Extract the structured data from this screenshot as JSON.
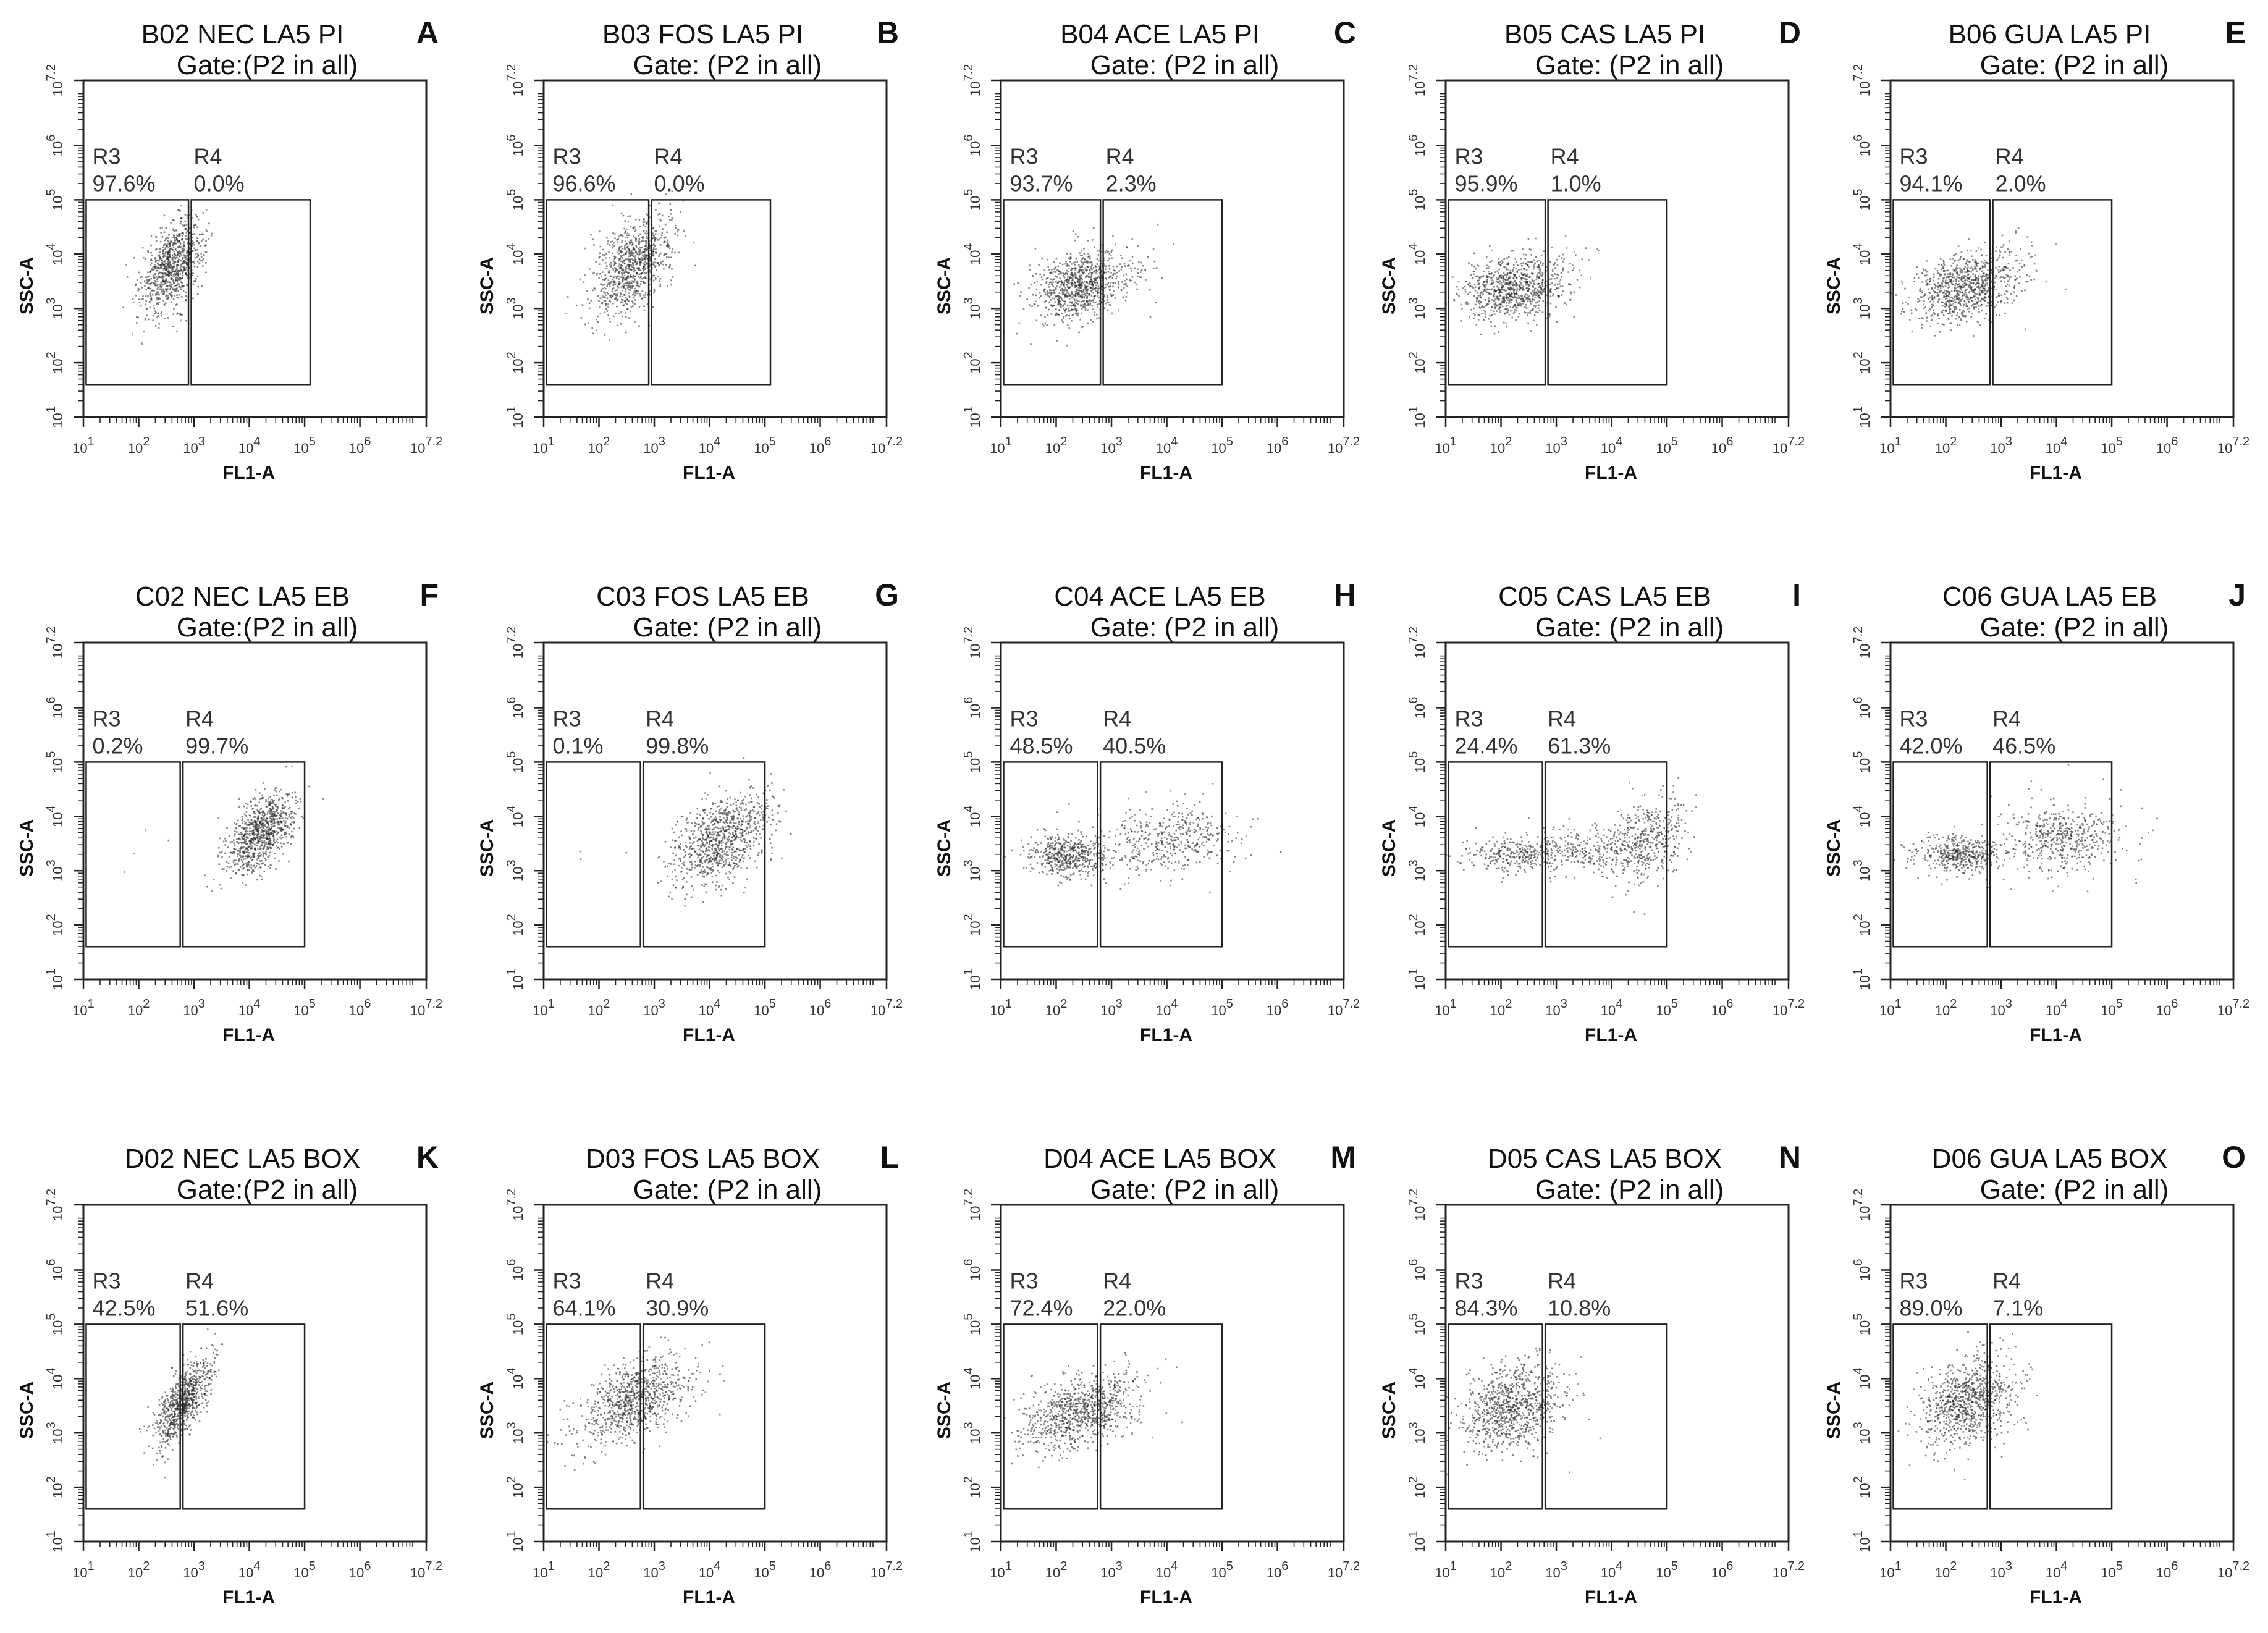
{
  "figure": {
    "axis_labels": {
      "x": "FL1-A",
      "y": "SSC-A"
    },
    "tick_base": "10",
    "x_ticks": [
      "1",
      "2",
      "3",
      "4",
      "5",
      "6",
      "7.2"
    ],
    "y_ticks": [
      "1",
      "2",
      "3",
      "4",
      "5",
      "6",
      "7.2"
    ],
    "colors": {
      "dots": "#222222",
      "frame": "#222222",
      "text": "#111111",
      "text_muted": "#333333"
    }
  },
  "chart_data": [
    {
      "letter": "A",
      "title": "B02 NEC LA5 PI",
      "gate": "Gate:(P2 in all)",
      "r3_label": "R3",
      "r3_value": "97.6%",
      "r4_label": "R4",
      "r4_value": "0.0%",
      "type": "scatter",
      "xlabel": "FL1-A",
      "ylabel": "SSC-A",
      "xlim": [
        1,
        7.2
      ],
      "ylim": [
        1,
        7.2
      ],
      "clusters": [
        {
          "x": 2.6,
          "y": 3.8,
          "sx": 0.28,
          "sy": 0.42,
          "rho": 0.45,
          "n": 900
        }
      ],
      "gate_r3": {
        "x": [
          1.05,
          2.9
        ],
        "y": [
          1.6,
          5.0
        ]
      },
      "gate_r4": {
        "x": [
          2.95,
          5.1
        ],
        "y": [
          1.6,
          5.0
        ]
      }
    },
    {
      "letter": "B",
      "title": "B03 FOS LA5 PI",
      "gate": "Gate: (P2 in all)",
      "r3_label": "R3",
      "r3_value": "96.6%",
      "r4_label": "R4",
      "r4_value": "0.0%",
      "type": "scatter",
      "xlabel": "FL1-A",
      "ylabel": "SSC-A",
      "xlim": [
        1,
        7.2
      ],
      "ylim": [
        1,
        7.2
      ],
      "clusters": [
        {
          "x": 2.6,
          "y": 3.8,
          "sx": 0.35,
          "sy": 0.45,
          "rho": 0.4,
          "n": 900
        }
      ],
      "gate_r3": {
        "x": [
          1.05,
          2.9
        ],
        "y": [
          1.6,
          5.0
        ]
      },
      "gate_r4": {
        "x": [
          2.95,
          5.1
        ],
        "y": [
          1.6,
          5.0
        ]
      }
    },
    {
      "letter": "C",
      "title": "B04 ACE LA5 PI",
      "gate": "Gate: (P2 in all)",
      "r3_label": "R3",
      "r3_value": "93.7%",
      "r4_label": "R4",
      "r4_value": "2.3%",
      "type": "scatter",
      "xlabel": "FL1-A",
      "ylabel": "SSC-A",
      "xlim": [
        1,
        7.2
      ],
      "ylim": [
        1,
        7.2
      ],
      "clusters": [
        {
          "x": 2.4,
          "y": 3.4,
          "sx": 0.4,
          "sy": 0.32,
          "rho": 0.2,
          "n": 850
        },
        {
          "x": 3.3,
          "y": 3.8,
          "sx": 0.4,
          "sy": 0.3,
          "rho": 0.1,
          "n": 60
        }
      ],
      "gate_r3": {
        "x": [
          1.05,
          2.8
        ],
        "y": [
          1.6,
          5.0
        ]
      },
      "gate_r4": {
        "x": [
          2.85,
          5.0
        ],
        "y": [
          1.6,
          5.0
        ]
      }
    },
    {
      "letter": "D",
      "title": "B05 CAS LA5 PI",
      "gate": "Gate: (P2 in all)",
      "r3_label": "R3",
      "r3_value": "95.9%",
      "r4_label": "R4",
      "r4_value": "1.0%",
      "type": "scatter",
      "xlabel": "FL1-A",
      "ylabel": "SSC-A",
      "xlim": [
        1,
        7.2
      ],
      "ylim": [
        1,
        7.2
      ],
      "clusters": [
        {
          "x": 2.2,
          "y": 3.4,
          "sx": 0.45,
          "sy": 0.3,
          "rho": 0.2,
          "n": 850
        },
        {
          "x": 3.2,
          "y": 3.8,
          "sx": 0.35,
          "sy": 0.3,
          "rho": 0.1,
          "n": 30
        }
      ],
      "gate_r3": {
        "x": [
          1.05,
          2.8
        ],
        "y": [
          1.6,
          5.0
        ]
      },
      "gate_r4": {
        "x": [
          2.85,
          5.0
        ],
        "y": [
          1.6,
          5.0
        ]
      }
    },
    {
      "letter": "E",
      "title": "B06 GUA LA5 PI",
      "gate": "Gate: (P2 in all)",
      "r3_label": "R3",
      "r3_value": "94.1%",
      "r4_label": "R4",
      "r4_value": "2.0%",
      "type": "scatter",
      "xlabel": "FL1-A",
      "ylabel": "SSC-A",
      "xlim": [
        1,
        7.2
      ],
      "ylim": [
        1,
        7.2
      ],
      "clusters": [
        {
          "x": 2.3,
          "y": 3.4,
          "sx": 0.45,
          "sy": 0.32,
          "rho": 0.2,
          "n": 850
        },
        {
          "x": 3.2,
          "y": 3.8,
          "sx": 0.35,
          "sy": 0.3,
          "rho": 0.1,
          "n": 50
        }
      ],
      "gate_r3": {
        "x": [
          1.05,
          2.8
        ],
        "y": [
          1.6,
          5.0
        ]
      },
      "gate_r4": {
        "x": [
          2.85,
          5.0
        ],
        "y": [
          1.6,
          5.0
        ]
      }
    },
    {
      "letter": "F",
      "title": "C02 NEC LA5 EB",
      "gate": "Gate:(P2 in all)",
      "r3_label": "R3",
      "r3_value": "0.2%",
      "r4_label": "R4",
      "r4_value": "99.7%",
      "type": "scatter",
      "xlabel": "FL1-A",
      "ylabel": "SSC-A",
      "xlim": [
        1,
        7.2
      ],
      "ylim": [
        1,
        7.2
      ],
      "clusters": [
        {
          "x": 4.2,
          "y": 3.7,
          "sx": 0.3,
          "sy": 0.38,
          "rho": 0.55,
          "n": 900
        },
        {
          "x": 1.9,
          "y": 3.2,
          "sx": 0.4,
          "sy": 0.3,
          "rho": 0,
          "n": 4
        }
      ],
      "gate_r3": {
        "x": [
          1.05,
          2.75
        ],
        "y": [
          1.6,
          5.0
        ]
      },
      "gate_r4": {
        "x": [
          2.8,
          5.0
        ],
        "y": [
          1.6,
          5.0
        ]
      }
    },
    {
      "letter": "G",
      "title": "C03 FOS LA5 EB",
      "gate": "Gate: (P2 in all)",
      "r3_label": "R3",
      "r3_value": "0.1%",
      "r4_label": "R4",
      "r4_value": "99.8%",
      "type": "scatter",
      "xlabel": "FL1-A",
      "ylabel": "SSC-A",
      "xlim": [
        1,
        7.2
      ],
      "ylim": [
        1,
        7.2
      ],
      "clusters": [
        {
          "x": 4.2,
          "y": 3.6,
          "sx": 0.45,
          "sy": 0.42,
          "rho": 0.45,
          "n": 900
        },
        {
          "x": 1.9,
          "y": 3.2,
          "sx": 0.4,
          "sy": 0.3,
          "rho": 0,
          "n": 3
        }
      ],
      "gate_r3": {
        "x": [
          1.05,
          2.75
        ],
        "y": [
          1.6,
          5.0
        ]
      },
      "gate_r4": {
        "x": [
          2.8,
          5.0
        ],
        "y": [
          1.6,
          5.0
        ]
      }
    },
    {
      "letter": "H",
      "title": "C04 ACE LA5 EB",
      "gate": "Gate: (P2 in all)",
      "r3_label": "R3",
      "r3_value": "48.5%",
      "r4_label": "R4",
      "r4_value": "40.5%",
      "type": "scatter",
      "xlabel": "FL1-A",
      "ylabel": "SSC-A",
      "xlim": [
        1,
        7.2
      ],
      "ylim": [
        1,
        7.2
      ],
      "clusters": [
        {
          "x": 2.2,
          "y": 3.3,
          "sx": 0.35,
          "sy": 0.2,
          "rho": 0,
          "n": 500
        },
        {
          "x": 4.0,
          "y": 3.6,
          "sx": 0.65,
          "sy": 0.32,
          "rho": 0.1,
          "n": 450
        }
      ],
      "gate_r3": {
        "x": [
          1.05,
          2.75
        ],
        "y": [
          1.6,
          5.0
        ]
      },
      "gate_r4": {
        "x": [
          2.8,
          5.0
        ],
        "y": [
          1.6,
          5.0
        ]
      }
    },
    {
      "letter": "I",
      "title": "C05 CAS LA5 EB",
      "gate": "Gate: (P2 in all)",
      "r3_label": "R3",
      "r3_value": "24.4%",
      "r4_label": "R4",
      "r4_value": "61.3%",
      "type": "scatter",
      "xlabel": "FL1-A",
      "ylabel": "SSC-A",
      "xlim": [
        1,
        7.2
      ],
      "ylim": [
        1,
        7.2
      ],
      "clusters": [
        {
          "x": 2.2,
          "y": 3.3,
          "sx": 0.45,
          "sy": 0.16,
          "rho": 0,
          "n": 280
        },
        {
          "x": 3.4,
          "y": 3.4,
          "sx": 0.5,
          "sy": 0.2,
          "rho": 0,
          "n": 250
        },
        {
          "x": 4.6,
          "y": 3.6,
          "sx": 0.35,
          "sy": 0.38,
          "rho": 0.3,
          "n": 450
        }
      ],
      "gate_r3": {
        "x": [
          1.05,
          2.75
        ],
        "y": [
          1.6,
          5.0
        ]
      },
      "gate_r4": {
        "x": [
          2.8,
          5.0
        ],
        "y": [
          1.6,
          5.0
        ]
      }
    },
    {
      "letter": "J",
      "title": "C06 GUA LA5 EB",
      "gate": "Gate: (P2 in all)",
      "r3_label": "R3",
      "r3_value": "42.0%",
      "r4_label": "R4",
      "r4_value": "46.5%",
      "type": "scatter",
      "xlabel": "FL1-A",
      "ylabel": "SSC-A",
      "xlim": [
        1,
        7.2
      ],
      "ylim": [
        1,
        7.2
      ],
      "clusters": [
        {
          "x": 2.2,
          "y": 3.3,
          "sx": 0.4,
          "sy": 0.18,
          "rho": 0,
          "n": 450
        },
        {
          "x": 4.1,
          "y": 3.6,
          "sx": 0.55,
          "sy": 0.35,
          "rho": 0.1,
          "n": 500
        }
      ],
      "gate_r3": {
        "x": [
          1.05,
          2.75
        ],
        "y": [
          1.6,
          5.0
        ]
      },
      "gate_r4": {
        "x": [
          2.8,
          5.0
        ],
        "y": [
          1.6,
          5.0
        ]
      }
    },
    {
      "letter": "K",
      "title": "D02 NEC LA5 BOX",
      "gate": "Gate:(P2 in all)",
      "r3_label": "R3",
      "r3_value": "42.5%",
      "r4_label": "R4",
      "r4_value": "51.6%",
      "type": "scatter",
      "xlabel": "FL1-A",
      "ylabel": "SSC-A",
      "xlim": [
        1,
        7.2
      ],
      "ylim": [
        1,
        7.2
      ],
      "clusters": [
        {
          "x": 2.8,
          "y": 3.6,
          "sx": 0.25,
          "sy": 0.4,
          "rho": 0.7,
          "n": 800
        }
      ],
      "gate_r3": {
        "x": [
          1.05,
          2.75
        ],
        "y": [
          1.6,
          5.0
        ]
      },
      "gate_r4": {
        "x": [
          2.8,
          5.0
        ],
        "y": [
          1.6,
          5.0
        ]
      }
    },
    {
      "letter": "L",
      "title": "D03 FOS LA5 BOX",
      "gate": "Gate: (P2 in all)",
      "r3_label": "R3",
      "r3_value": "64.1%",
      "r4_label": "R4",
      "r4_value": "30.9%",
      "type": "scatter",
      "xlabel": "FL1-A",
      "ylabel": "SSC-A",
      "xlim": [
        1,
        7.2
      ],
      "ylim": [
        1,
        7.2
      ],
      "clusters": [
        {
          "x": 2.6,
          "y": 3.6,
          "sx": 0.5,
          "sy": 0.4,
          "rho": 0.5,
          "n": 900
        }
      ],
      "gate_r3": {
        "x": [
          1.05,
          2.75
        ],
        "y": [
          1.6,
          5.0
        ]
      },
      "gate_r4": {
        "x": [
          2.8,
          5.0
        ],
        "y": [
          1.6,
          5.0
        ]
      }
    },
    {
      "letter": "M",
      "title": "D04 ACE LA5 BOX",
      "gate": "Gate: (P2 in all)",
      "r3_label": "R3",
      "r3_value": "72.4%",
      "r4_label": "R4",
      "r4_value": "22.0%",
      "type": "scatter",
      "xlabel": "FL1-A",
      "ylabel": "SSC-A",
      "xlim": [
        1,
        7.2
      ],
      "ylim": [
        1,
        7.2
      ],
      "clusters": [
        {
          "x": 2.4,
          "y": 3.4,
          "sx": 0.55,
          "sy": 0.35,
          "rho": 0.45,
          "n": 900
        }
      ],
      "gate_r3": {
        "x": [
          1.05,
          2.75
        ],
        "y": [
          1.6,
          5.0
        ]
      },
      "gate_r4": {
        "x": [
          2.8,
          5.0
        ],
        "y": [
          1.6,
          5.0
        ]
      }
    },
    {
      "letter": "N",
      "title": "D05 CAS LA5 BOX",
      "gate": "Gate: (P2 in all)",
      "r3_label": "R3",
      "r3_value": "84.3%",
      "r4_label": "R4",
      "r4_value": "10.8%",
      "type": "scatter",
      "xlabel": "FL1-A",
      "ylabel": "SSC-A",
      "xlim": [
        1,
        7.2
      ],
      "ylim": [
        1,
        7.2
      ],
      "clusters": [
        {
          "x": 2.2,
          "y": 3.5,
          "sx": 0.45,
          "sy": 0.4,
          "rho": 0.2,
          "n": 900
        }
      ],
      "gate_r3": {
        "x": [
          1.05,
          2.75
        ],
        "y": [
          1.6,
          5.0
        ]
      },
      "gate_r4": {
        "x": [
          2.8,
          5.0
        ],
        "y": [
          1.6,
          5.0
        ]
      }
    },
    {
      "letter": "O",
      "title": "D06 GUA LA5 BOX",
      "gate": "Gate: (P2 in all)",
      "r3_label": "R3",
      "r3_value": "89.0%",
      "r4_label": "R4",
      "r4_value": "7.1%",
      "type": "scatter",
      "xlabel": "FL1-A",
      "ylabel": "SSC-A",
      "xlim": [
        1,
        7.2
      ],
      "ylim": [
        1,
        7.2
      ],
      "clusters": [
        {
          "x": 2.4,
          "y": 3.6,
          "sx": 0.42,
          "sy": 0.42,
          "rho": 0.3,
          "n": 900
        }
      ],
      "gate_r3": {
        "x": [
          1.05,
          2.75
        ],
        "y": [
          1.6,
          5.0
        ]
      },
      "gate_r4": {
        "x": [
          2.8,
          5.0
        ],
        "y": [
          1.6,
          5.0
        ]
      }
    }
  ]
}
